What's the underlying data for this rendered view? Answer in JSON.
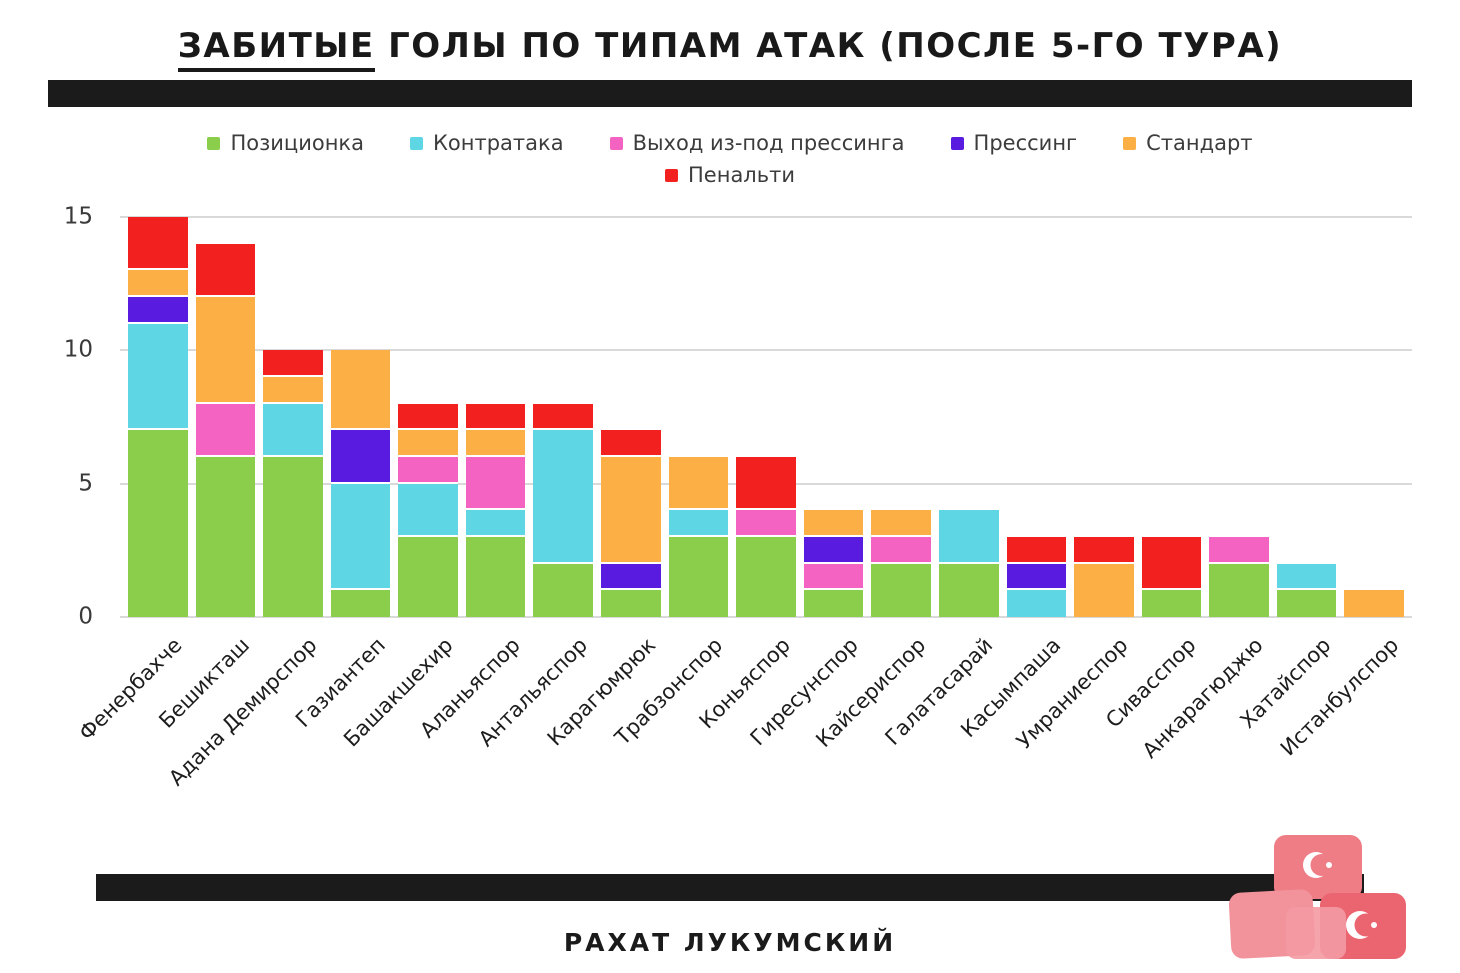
{
  "title": {
    "part1": "ЗАБИТЫЕ",
    "part2": " ГОЛЫ ПО ТИПАМ АТАК (ПОСЛЕ 5-ГО ТУРА)"
  },
  "footer": "РАХАТ ЛУКУМСКИЙ",
  "colors": {
    "bar_strip": "#1b1b1b",
    "gridline": "#d9d9d9",
    "background": "#ffffff",
    "text": "#1d1d1d"
  },
  "chart_data": {
    "type": "bar",
    "stacked": true,
    "title": "ЗАБИТЫЕ ГОЛЫ ПО ТИПАМ АТАК (ПОСЛЕ 5-ГО ТУРА)",
    "xlabel": "",
    "ylabel": "",
    "ylim": [
      0,
      15
    ],
    "yticks": [
      0,
      5,
      10,
      15
    ],
    "grid": true,
    "legend_position": "top",
    "categories": [
      "Фенербахче",
      "Бешикташ",
      "Адана Демирспор",
      "Газиантеп",
      "Башакшехир",
      "Аланьяспор",
      "Антальяспор",
      "Карагюмрюк",
      "Трабзонспор",
      "Коньяспор",
      "Гиресунспор",
      "Кайсериспор",
      "Галатасарай",
      "Касымпаша",
      "Умраниеспор",
      "Сивасспор",
      "Анкарагюджю",
      "Хатайспор",
      "Истанбулспор"
    ],
    "series": [
      {
        "name": "Позиционка",
        "color": "#8bce4c",
        "values": [
          7,
          6,
          6,
          1,
          3,
          3,
          2,
          1,
          3,
          3,
          1,
          2,
          2,
          0,
          0,
          1,
          2,
          1,
          0
        ]
      },
      {
        "name": "Контратака",
        "color": "#5fd6e4",
        "values": [
          4,
          0,
          2,
          4,
          2,
          1,
          5,
          0,
          1,
          0,
          0,
          0,
          2,
          1,
          0,
          0,
          0,
          1,
          0
        ]
      },
      {
        "name": "Выход из-под прессинга",
        "color": "#f463c2",
        "values": [
          0,
          2,
          0,
          0,
          1,
          2,
          0,
          0,
          0,
          1,
          1,
          1,
          0,
          0,
          0,
          0,
          1,
          0,
          0
        ]
      },
      {
        "name": "Прессинг",
        "color": "#5a1be0",
        "values": [
          1,
          0,
          0,
          2,
          0,
          0,
          0,
          1,
          0,
          0,
          1,
          0,
          0,
          1,
          0,
          0,
          0,
          0,
          0
        ]
      },
      {
        "name": "Стандарт",
        "color": "#fbaf45",
        "values": [
          1,
          4,
          1,
          3,
          1,
          1,
          0,
          4,
          2,
          0,
          1,
          1,
          0,
          0,
          2,
          0,
          0,
          0,
          1
        ]
      },
      {
        "name": "Пенальти",
        "color": "#f32020",
        "values": [
          2,
          2,
          1,
          0,
          1,
          1,
          1,
          1,
          0,
          2,
          0,
          0,
          0,
          1,
          1,
          2,
          0,
          0,
          0
        ]
      }
    ],
    "totals": [
      15,
      14,
      10,
      10,
      8,
      8,
      8,
      7,
      6,
      6,
      4,
      4,
      4,
      3,
      3,
      3,
      3,
      2,
      1
    ]
  }
}
